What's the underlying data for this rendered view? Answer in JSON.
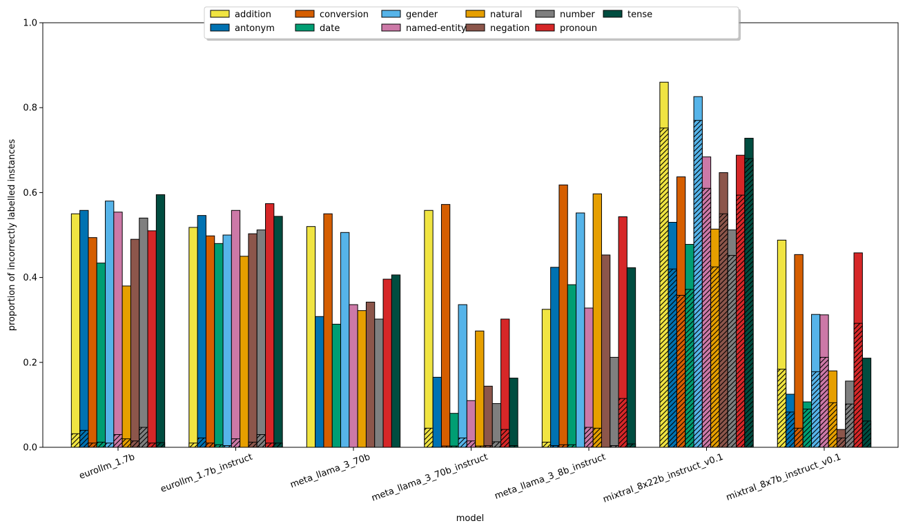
{
  "chart_data": {
    "type": "bar",
    "title": "",
    "xlabel": "model",
    "ylabel": "proportion of incorrectly labelled instances",
    "ylim": [
      0,
      1.0
    ],
    "yticks": [
      "0.0",
      "0.2",
      "0.4",
      "0.6",
      "0.8",
      "1.0"
    ],
    "legend_position": "top-center",
    "categories": [
      "eurollm_1.7b",
      "eurollm_1.7b_instruct",
      "meta_llama_3_70b",
      "meta_llama_3_70b_instruct",
      "meta_llama_3_8b_instruct",
      "mixtral_8x22b_instruct_v0.1",
      "mixtral_8x7b_instruct_v0.1"
    ],
    "series": [
      {
        "name": "addition",
        "color": "#F0E442",
        "values": [
          0.55,
          0.518,
          0.52,
          0.558,
          0.325,
          0.86,
          0.488
        ],
        "hatched": [
          0.032,
          0.01,
          0.0,
          0.045,
          0.012,
          0.752,
          0.184
        ]
      },
      {
        "name": "antonym",
        "color": "#0072B2",
        "values": [
          0.558,
          0.546,
          0.308,
          0.165,
          0.424,
          0.53,
          0.125
        ],
        "hatched": [
          0.04,
          0.022,
          0.0,
          0.0,
          0.004,
          0.42,
          0.083
        ]
      },
      {
        "name": "conversion",
        "color": "#D55E00",
        "values": [
          0.494,
          0.498,
          0.55,
          0.572,
          0.618,
          0.637,
          0.454
        ],
        "hatched": [
          0.01,
          0.01,
          0.0,
          0.003,
          0.006,
          0.358,
          0.045
        ]
      },
      {
        "name": "date",
        "color": "#009E73",
        "values": [
          0.434,
          0.48,
          0.29,
          0.08,
          0.383,
          0.478,
          0.107
        ],
        "hatched": [
          0.012,
          0.006,
          0.0,
          0.003,
          0.006,
          0.372,
          0.09
        ]
      },
      {
        "name": "gender",
        "color": "#56B4E9",
        "values": [
          0.58,
          0.5,
          0.506,
          0.336,
          0.552,
          0.826,
          0.313
        ],
        "hatched": [
          0.01,
          0.004,
          0.0,
          0.022,
          0.0,
          0.77,
          0.178
        ]
      },
      {
        "name": "named-entity",
        "color": "#CC79A7",
        "values": [
          0.554,
          0.558,
          0.336,
          0.11,
          0.328,
          0.684,
          0.312
        ],
        "hatched": [
          0.03,
          0.02,
          0.0,
          0.015,
          0.047,
          0.61,
          0.212
        ]
      },
      {
        "name": "natural",
        "color": "#E69F00",
        "values": [
          0.38,
          0.45,
          0.322,
          0.274,
          0.597,
          0.514,
          0.18
        ],
        "hatched": [
          0.02,
          0.0,
          0.0,
          0.003,
          0.045,
          0.425,
          0.105
        ]
      },
      {
        "name": "negation",
        "color": "#8C564B",
        "values": [
          0.49,
          0.503,
          0.342,
          0.144,
          0.453,
          0.647,
          0.042
        ],
        "hatched": [
          0.015,
          0.012,
          0.0,
          0.004,
          0.0,
          0.55,
          0.022
        ]
      },
      {
        "name": "number",
        "color": "#7F7F7F",
        "values": [
          0.54,
          0.512,
          0.302,
          0.103,
          0.212,
          0.512,
          0.156
        ],
        "hatched": [
          0.047,
          0.03,
          0.0,
          0.013,
          0.004,
          0.452,
          0.102
        ]
      },
      {
        "name": "pronoun",
        "color": "#D62728",
        "values": [
          0.51,
          0.574,
          0.396,
          0.302,
          0.543,
          0.688,
          0.458
        ],
        "hatched": [
          0.01,
          0.01,
          0.0,
          0.042,
          0.115,
          0.594,
          0.292
        ]
      },
      {
        "name": "tense",
        "color": "#004D40",
        "values": [
          0.595,
          0.544,
          0.406,
          0.163,
          0.423,
          0.728,
          0.21
        ],
        "hatched": [
          0.011,
          0.01,
          0.0,
          0.004,
          0.008,
          0.68,
          0.062
        ]
      }
    ]
  }
}
